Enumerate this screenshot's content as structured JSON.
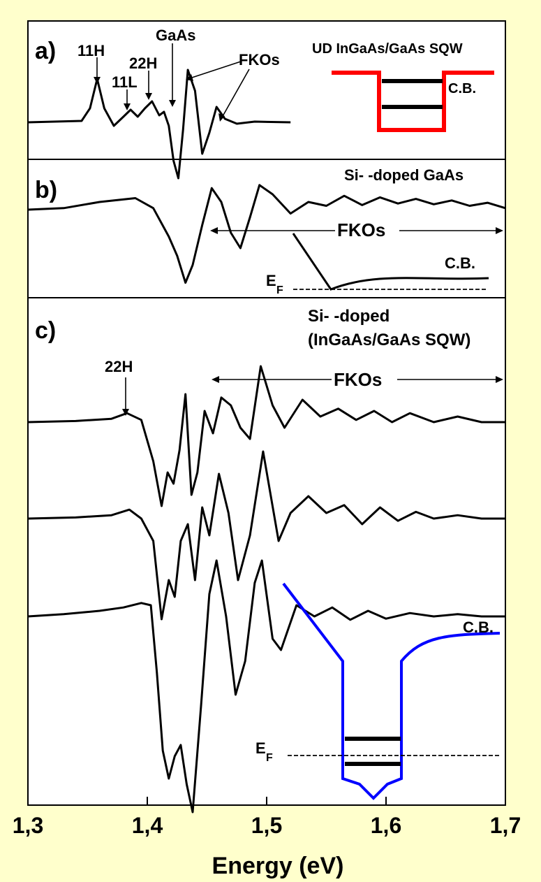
{
  "chart_data": {
    "type": "line",
    "xlabel": "Energy (eV)",
    "ylabel": "",
    "xlim": [
      1.3,
      1.7
    ],
    "xticks": [
      "1,3",
      "1,4",
      "1,5",
      "1,6",
      "1,7"
    ],
    "grid": false,
    "colors": {
      "background": "#ffffcc",
      "panel": "#ffffff",
      "trace": "#000000",
      "band_red": "#ff0000",
      "band_blue": "#0000ff"
    },
    "panels": [
      {
        "id": "a",
        "label": "a)",
        "title": "UD InGaAs/GaAs SQW",
        "annotations": [
          "11H",
          "11L",
          "22H",
          "GaAs",
          "FKOs"
        ],
        "band_label": "C.B.",
        "series": [
          {
            "x": [
              1.3,
              1.345,
              1.352,
              1.358,
              1.364,
              1.372,
              1.38,
              1.386,
              1.392,
              1.398,
              1.404,
              1.41,
              1.414,
              1.418,
              1.422,
              1.426,
              1.43,
              1.434,
              1.44,
              1.446,
              1.452,
              1.458,
              1.465,
              1.475,
              1.49,
              1.52
            ],
            "y": [
              0,
              0.02,
              0.2,
              0.62,
              0.2,
              -0.05,
              0.08,
              0.18,
              0.08,
              0.2,
              0.3,
              0.1,
              0.15,
              -0.05,
              -0.55,
              -0.8,
              -0.1,
              0.75,
              0.45,
              -0.45,
              -0.15,
              0.22,
              0.05,
              -0.02,
              0.01,
              0
            ]
          }
        ]
      },
      {
        "id": "b",
        "label": "b)",
        "title": "Si- -doped GaAs",
        "annotations": [
          "FKOs"
        ],
        "band_label": "C.B.",
        "fermi_label": "E",
        "fermi_sub": "F",
        "series": [
          {
            "x": [
              1.3,
              1.33,
              1.36,
              1.39,
              1.405,
              1.418,
              1.425,
              1.432,
              1.438,
              1.446,
              1.454,
              1.462,
              1.47,
              1.478,
              1.486,
              1.494,
              1.505,
              1.52,
              1.535,
              1.55,
              1.565,
              1.58,
              1.595,
              1.61,
              1.625,
              1.64,
              1.655,
              1.67,
              1.685,
              1.7
            ],
            "y": [
              0,
              0.02,
              0.1,
              0.15,
              0.02,
              -0.35,
              -0.6,
              -0.95,
              -0.72,
              -0.2,
              0.28,
              0.1,
              -0.3,
              -0.5,
              -0.1,
              0.32,
              0.2,
              -0.05,
              0.1,
              0.05,
              0.18,
              0.06,
              0.16,
              0.08,
              0.14,
              0.07,
              0.12,
              0.05,
              0.09,
              0.02
            ]
          }
        ]
      },
      {
        "id": "c",
        "label": "c)",
        "title": "Si- -doped",
        "subtitle": "(InGaAs/GaAs SQW)",
        "annotations": [
          "22H",
          "FKOs"
        ],
        "band_label": "C.B.",
        "fermi_label": "E",
        "fermi_sub": "F",
        "series": [
          {
            "x": [
              1.3,
              1.34,
              1.37,
              1.383,
              1.395,
              1.405,
              1.412,
              1.417,
              1.422,
              1.427,
              1.432,
              1.437,
              1.442,
              1.448,
              1.455,
              1.462,
              1.47,
              1.478,
              1.486,
              1.495,
              1.505,
              1.515,
              1.53,
              1.545,
              1.56,
              1.575,
              1.59,
              1.605,
              1.62,
              1.64,
              1.66,
              1.68,
              1.7
            ],
            "y": [
              0,
              0.01,
              0.03,
              0.08,
              0.02,
              -0.35,
              -0.75,
              -0.45,
              -0.55,
              -0.25,
              0.25,
              -0.65,
              -0.45,
              0.1,
              -0.1,
              0.22,
              0.15,
              -0.05,
              -0.15,
              0.5,
              0.15,
              -0.05,
              0.2,
              0.05,
              0.12,
              0.02,
              0.1,
              0.0,
              0.08,
              0.0,
              0.05,
              0.0,
              0.0
            ]
          },
          {
            "x": [
              1.3,
              1.34,
              1.37,
              1.385,
              1.395,
              1.405,
              1.412,
              1.418,
              1.423,
              1.428,
              1.434,
              1.44,
              1.446,
              1.452,
              1.46,
              1.468,
              1.476,
              1.486,
              1.497,
              1.51,
              1.52,
              1.535,
              1.55,
              1.565,
              1.58,
              1.595,
              1.61,
              1.625,
              1.64,
              1.66,
              1.68,
              1.7
            ],
            "y": [
              0,
              0.01,
              0.03,
              0.08,
              0.0,
              -0.2,
              -0.9,
              -0.55,
              -0.7,
              -0.2,
              -0.05,
              -0.55,
              0.1,
              -0.15,
              0.4,
              0.05,
              -0.55,
              -0.15,
              0.6,
              -0.2,
              0.05,
              0.2,
              0.05,
              0.12,
              -0.05,
              0.1,
              -0.02,
              0.06,
              0.0,
              0.03,
              0.0,
              0.0
            ]
          },
          {
            "x": [
              1.3,
              1.33,
              1.36,
              1.38,
              1.395,
              1.403,
              1.408,
              1.413,
              1.418,
              1.423,
              1.428,
              1.433,
              1.438,
              1.445,
              1.452,
              1.458,
              1.466,
              1.474,
              1.482,
              1.49,
              1.496,
              1.505,
              1.512,
              1.525,
              1.54,
              1.555,
              1.57,
              1.585,
              1.6,
              1.62,
              1.64,
              1.66,
              1.68,
              1.7
            ],
            "y": [
              0,
              0.02,
              0.05,
              0.08,
              0.12,
              0.1,
              -0.5,
              -1.2,
              -1.45,
              -1.25,
              -1.15,
              -1.5,
              -1.75,
              -0.8,
              0.2,
              0.5,
              0.0,
              -0.7,
              -0.4,
              0.3,
              0.5,
              -0.2,
              -0.3,
              0.1,
              0.0,
              0.08,
              -0.03,
              0.05,
              -0.02,
              0.03,
              0.0,
              0.02,
              0.0,
              0.0
            ]
          }
        ]
      }
    ]
  }
}
